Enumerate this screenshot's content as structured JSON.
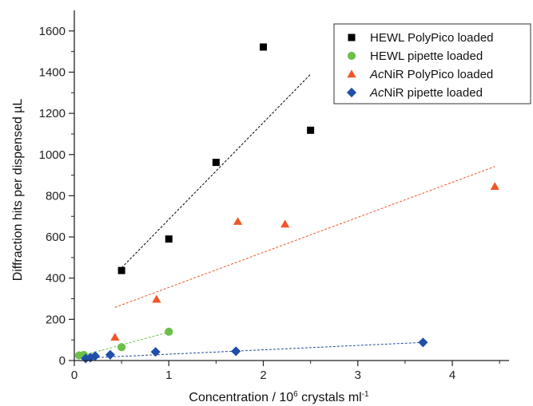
{
  "chart_data": {
    "type": "scatter",
    "xlabel": "Concentration / 10⁶ crystals ml⁻¹",
    "ylabel": "Diffraction hits per dispensed µL",
    "xlim": [
      0,
      4.6
    ],
    "ylim": [
      0,
      1700
    ],
    "x_ticks": [
      "0",
      "1",
      "2",
      "3",
      "4"
    ],
    "y_ticks": [
      "0",
      "200",
      "400",
      "600",
      "800",
      "1000",
      "1200",
      "1400",
      "1600"
    ],
    "legend_position": "top-right",
    "series": [
      {
        "name": "HEWL PolyPico loaded",
        "marker": "square",
        "color": "#000000",
        "points": [
          [
            0.5,
            437
          ],
          [
            1.0,
            590
          ],
          [
            1.5,
            962
          ],
          [
            2.0,
            1522
          ],
          [
            2.5,
            1118
          ]
        ],
        "fit": [
          [
            0.5,
            450
          ],
          [
            2.5,
            1390
          ]
        ]
      },
      {
        "name": "HEWL pipette loaded",
        "marker": "circle",
        "color": "#6cc04a",
        "points": [
          [
            0.05,
            25
          ],
          [
            0.1,
            27
          ],
          [
            0.5,
            65
          ],
          [
            1.0,
            140
          ]
        ],
        "fit": [
          [
            0.05,
            20
          ],
          [
            1.0,
            138
          ]
        ]
      },
      {
        "name": "AcNiR PolyPico loaded",
        "marker": "triangle",
        "color": "#f0562a",
        "points": [
          [
            0.43,
            113
          ],
          [
            0.87,
            297
          ],
          [
            1.73,
            675
          ],
          [
            2.23,
            662
          ],
          [
            4.45,
            845
          ]
        ],
        "fit": [
          [
            0.43,
            258
          ],
          [
            4.45,
            942
          ]
        ]
      },
      {
        "name": "AcNiR pipette loaded",
        "marker": "diamond",
        "color": "#1f4fa8",
        "points": [
          [
            0.12,
            10
          ],
          [
            0.17,
            14
          ],
          [
            0.22,
            22
          ],
          [
            0.38,
            28
          ],
          [
            0.86,
            42
          ],
          [
            1.71,
            45
          ],
          [
            3.69,
            88
          ]
        ],
        "fit": [
          [
            0.12,
            12
          ],
          [
            3.69,
            88
          ]
        ]
      }
    ],
    "legend": [
      {
        "prefix": "",
        "italic": "",
        "rest": "HEWL PolyPico loaded"
      },
      {
        "prefix": "",
        "italic": "",
        "rest": "HEWL pipette loaded"
      },
      {
        "prefix": "",
        "italic": "Ac",
        "rest": "NiR PolyPico loaded"
      },
      {
        "prefix": "",
        "italic": "Ac",
        "rest": "NiR pipette loaded"
      }
    ]
  }
}
